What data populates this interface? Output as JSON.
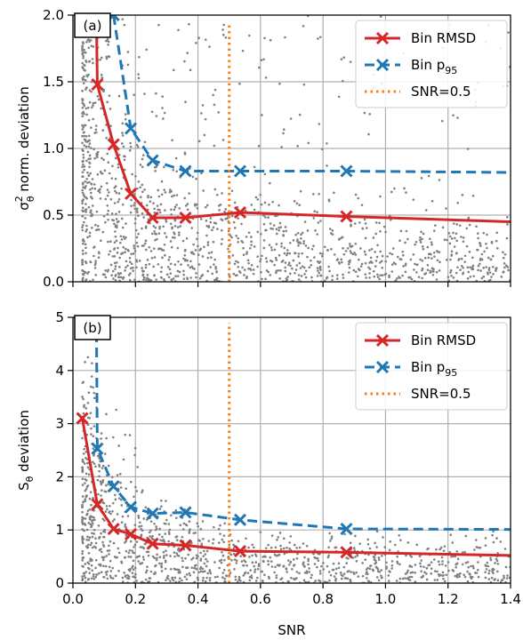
{
  "chart_data": [
    {
      "type": "scatter",
      "panel_label": "(a)",
      "xlabel": "",
      "ylabel_base": "σ",
      "ylabel_sup": "2",
      "ylabel_sub": "θ",
      "ylabel_rest": " norm. deviation",
      "xlim": [
        0.0,
        1.4
      ],
      "ylim": [
        0.0,
        2.0
      ],
      "xticks": [
        0.0,
        0.2,
        0.4,
        0.6,
        0.8,
        1.0,
        1.2,
        1.4
      ],
      "yticks": [
        0.0,
        0.5,
        1.0,
        1.5,
        2.0
      ],
      "ytick_labels": [
        "0.0",
        "0.5",
        "1.0",
        "1.5",
        "2.0"
      ],
      "grid": true,
      "legend_position": "top-right",
      "series": [
        {
          "name": "Bin RMSD",
          "color": "#d62728",
          "style": "solid-x",
          "x": [
            0.075,
            0.078,
            0.13,
            0.185,
            0.255,
            0.36,
            0.535,
            0.875,
            1.4
          ],
          "y": [
            2.0,
            1.48,
            1.03,
            0.66,
            0.48,
            0.48,
            0.52,
            0.49,
            0.45
          ]
        },
        {
          "name": "Bin p95",
          "color": "#1f77b4",
          "style": "dashed-x",
          "x": [
            0.13,
            0.185,
            0.255,
            0.36,
            0.535,
            0.875,
            1.4
          ],
          "y": [
            2.0,
            1.15,
            0.91,
            0.83,
            0.83,
            0.83,
            0.82
          ]
        },
        {
          "name": "SNR=0.5",
          "color": "#ff7f0e",
          "style": "dotted-vline",
          "x": [
            0.5,
            0.5
          ],
          "y": [
            0.0,
            1.95
          ]
        }
      ],
      "legend": [
        {
          "label": "Bin RMSD",
          "sub": ""
        },
        {
          "label": "Bin p",
          "sub": "95"
        },
        {
          "label": "SNR=0.5",
          "sub": ""
        }
      ]
    },
    {
      "type": "scatter",
      "panel_label": "(b)",
      "xlabel": "SNR",
      "ylabel_base": "S",
      "ylabel_sup": "",
      "ylabel_sub": "θ",
      "ylabel_rest": " deviation",
      "xlim": [
        0.0,
        1.4
      ],
      "ylim": [
        0,
        5
      ],
      "xticks": [
        0.0,
        0.2,
        0.4,
        0.6,
        0.8,
        1.0,
        1.2,
        1.4
      ],
      "xtick_labels": [
        "0.0",
        "0.2",
        "0.4",
        "0.6",
        "0.8",
        "1.0",
        "1.2",
        "1.4"
      ],
      "yticks": [
        0,
        1,
        2,
        3,
        4,
        5
      ],
      "ytick_labels": [
        "0",
        "1",
        "2",
        "3",
        "4",
        "5"
      ],
      "grid": true,
      "legend_position": "top-right",
      "series": [
        {
          "name": "Bin RMSD",
          "color": "#d62728",
          "style": "solid-x",
          "x": [
            0.03,
            0.078,
            0.13,
            0.185,
            0.255,
            0.36,
            0.535,
            0.875,
            1.4
          ],
          "y": [
            3.1,
            1.48,
            1.02,
            0.92,
            0.74,
            0.71,
            0.6,
            0.58,
            0.52
          ]
        },
        {
          "name": "Bin p95",
          "color": "#1f77b4",
          "style": "dashed-x",
          "x": [
            0.075,
            0.078,
            0.13,
            0.185,
            0.255,
            0.36,
            0.535,
            0.875,
            1.4
          ],
          "y": [
            5.0,
            2.53,
            1.82,
            1.43,
            1.31,
            1.33,
            1.19,
            1.02,
            1.01
          ]
        },
        {
          "name": "SNR=0.5",
          "color": "#ff7f0e",
          "style": "dotted-vline",
          "x": [
            0.5,
            0.5
          ],
          "y": [
            0.0,
            4.9
          ]
        }
      ],
      "legend": [
        {
          "label": "Bin RMSD",
          "sub": ""
        },
        {
          "label": "Bin p",
          "sub": "95"
        },
        {
          "label": "SNR=0.5",
          "sub": ""
        }
      ]
    }
  ],
  "colors": {
    "scatter_points": "#808080",
    "grid": "#b0b0b0",
    "rmsd": "#d62728",
    "p95": "#1f77b4",
    "snr_line": "#ff7f0e"
  }
}
